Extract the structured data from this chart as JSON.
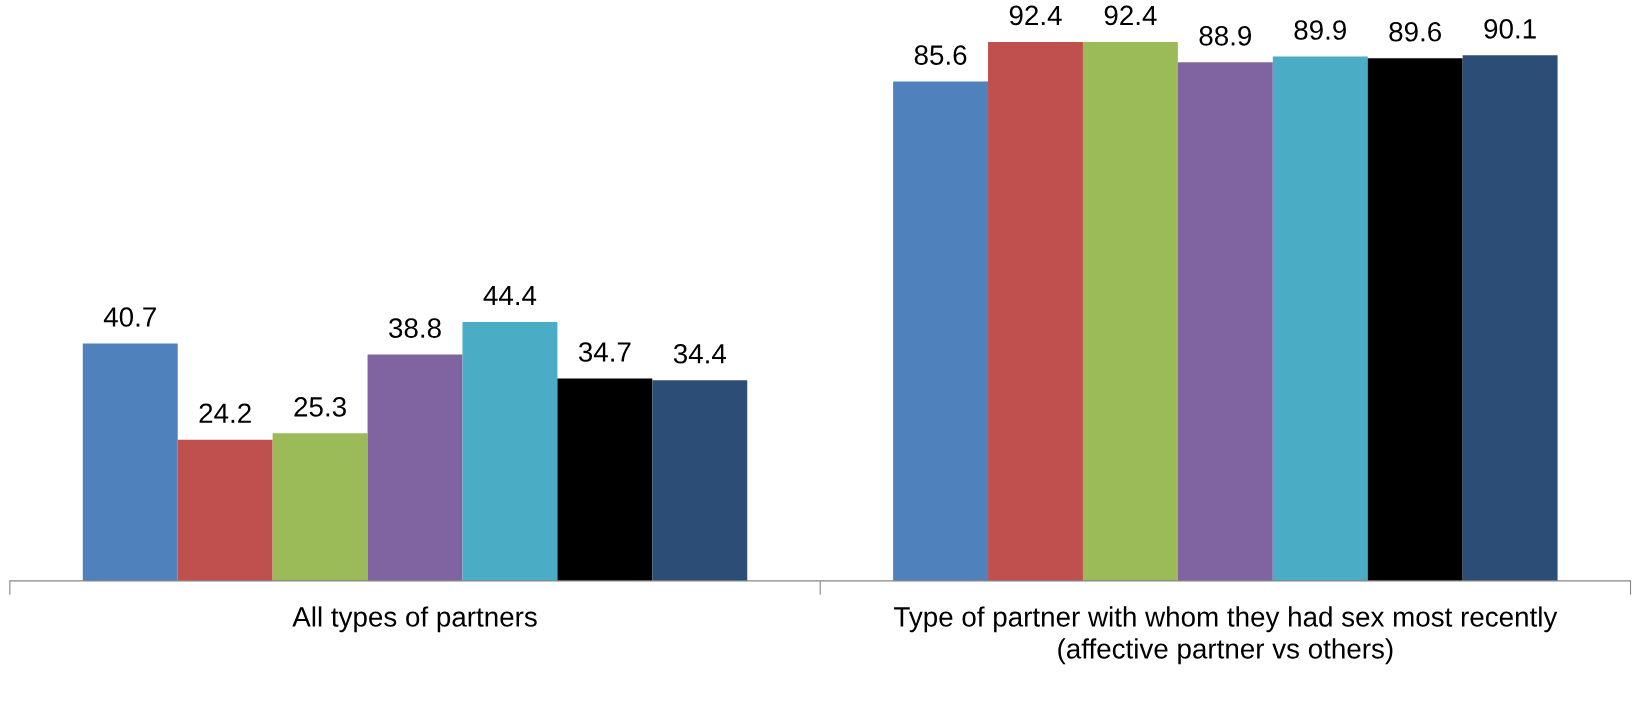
{
  "chart_data": {
    "type": "bar",
    "categories": [
      "All types of partners",
      "Type of partner with whom they had sex most recently (affective partner vs others)"
    ],
    "series": [
      {
        "color": "#4f81bd",
        "values": [
          40.7,
          85.6
        ]
      },
      {
        "color": "#c0504d",
        "values": [
          24.2,
          92.4
        ]
      },
      {
        "color": "#9bbb59",
        "values": [
          25.3,
          92.4
        ]
      },
      {
        "color": "#8064a2",
        "values": [
          38.8,
          88.9
        ]
      },
      {
        "color": "#4bacc6",
        "values": [
          44.4,
          89.9
        ]
      },
      {
        "color": "#000000",
        "values": [
          34.7,
          89.6
        ]
      },
      {
        "color": "#2c4d75",
        "values": [
          34.4,
          90.1
        ]
      }
    ],
    "data_labels": true,
    "tick_labels": "x",
    "grid": false,
    "legend": false
  }
}
